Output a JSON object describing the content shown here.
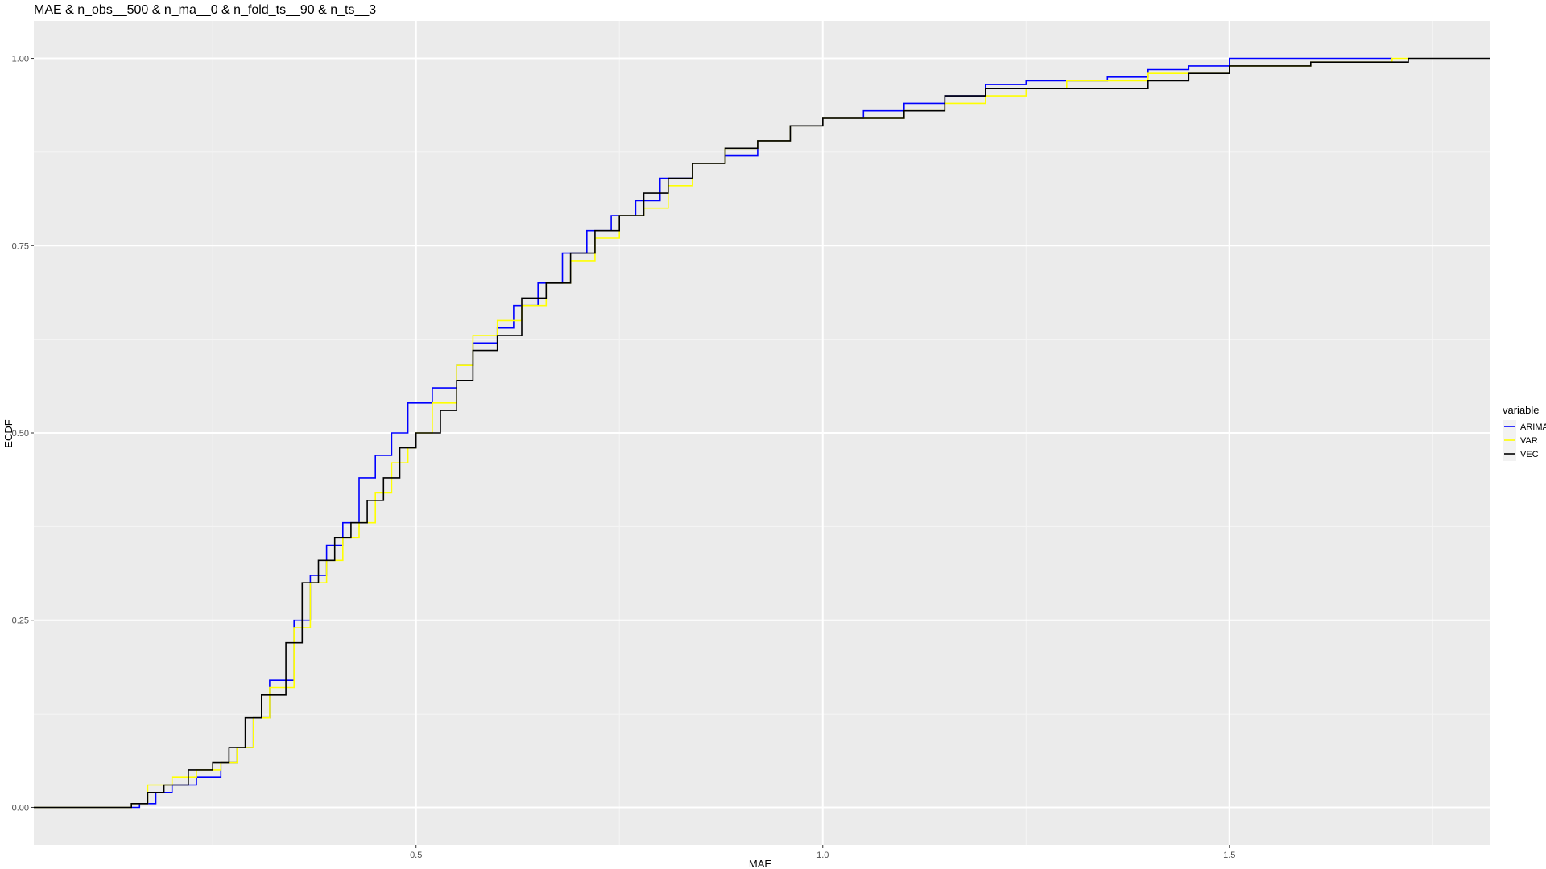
{
  "chart_data": {
    "type": "line",
    "title": "MAE & n_obs__500 & n_ma__0 & n_fold_ts__90 & n_ts__3",
    "xlabel": "MAE",
    "ylabel": "ECDF",
    "xlim": [
      0.03,
      1.82
    ],
    "ylim": [
      -0.05,
      1.05
    ],
    "x_ticks": [
      0.5,
      1.0,
      1.5
    ],
    "x_tick_labels": [
      "0.5",
      "1.0",
      "1.5"
    ],
    "y_ticks": [
      0.0,
      0.25,
      0.5,
      0.75,
      1.0
    ],
    "y_tick_labels": [
      "0.00",
      "0.25",
      "0.50",
      "0.75",
      "1.00"
    ],
    "grid": true,
    "legend": {
      "title": "variable",
      "placement": "right"
    },
    "series": [
      {
        "name": "ARIMA",
        "color": "#0000ff",
        "points": [
          [
            0.03,
            0.0
          ],
          [
            0.14,
            0.0
          ],
          [
            0.16,
            0.005
          ],
          [
            0.18,
            0.02
          ],
          [
            0.2,
            0.03
          ],
          [
            0.23,
            0.04
          ],
          [
            0.26,
            0.06
          ],
          [
            0.28,
            0.08
          ],
          [
            0.3,
            0.12
          ],
          [
            0.32,
            0.17
          ],
          [
            0.35,
            0.25
          ],
          [
            0.37,
            0.31
          ],
          [
            0.39,
            0.35
          ],
          [
            0.41,
            0.38
          ],
          [
            0.43,
            0.44
          ],
          [
            0.45,
            0.47
          ],
          [
            0.47,
            0.5
          ],
          [
            0.49,
            0.54
          ],
          [
            0.52,
            0.56
          ],
          [
            0.55,
            0.59
          ],
          [
            0.57,
            0.62
          ],
          [
            0.6,
            0.64
          ],
          [
            0.62,
            0.67
          ],
          [
            0.65,
            0.7
          ],
          [
            0.68,
            0.74
          ],
          [
            0.71,
            0.77
          ],
          [
            0.74,
            0.79
          ],
          [
            0.77,
            0.81
          ],
          [
            0.8,
            0.84
          ],
          [
            0.84,
            0.86
          ],
          [
            0.88,
            0.87
          ],
          [
            0.92,
            0.89
          ],
          [
            0.96,
            0.91
          ],
          [
            1.0,
            0.92
          ],
          [
            1.05,
            0.93
          ],
          [
            1.1,
            0.94
          ],
          [
            1.15,
            0.95
          ],
          [
            1.2,
            0.965
          ],
          [
            1.25,
            0.97
          ],
          [
            1.3,
            0.97
          ],
          [
            1.35,
            0.975
          ],
          [
            1.4,
            0.985
          ],
          [
            1.45,
            0.99
          ],
          [
            1.5,
            1.0
          ],
          [
            1.7,
            1.0
          ]
        ]
      },
      {
        "name": "VAR",
        "color": "#ffff00",
        "points": [
          [
            0.03,
            0.0
          ],
          [
            0.14,
            0.0
          ],
          [
            0.15,
            0.005
          ],
          [
            0.17,
            0.03
          ],
          [
            0.2,
            0.04
          ],
          [
            0.23,
            0.05
          ],
          [
            0.26,
            0.06
          ],
          [
            0.28,
            0.08
          ],
          [
            0.3,
            0.12
          ],
          [
            0.32,
            0.16
          ],
          [
            0.35,
            0.24
          ],
          [
            0.37,
            0.3
          ],
          [
            0.39,
            0.33
          ],
          [
            0.41,
            0.36
          ],
          [
            0.43,
            0.38
          ],
          [
            0.45,
            0.42
          ],
          [
            0.47,
            0.46
          ],
          [
            0.49,
            0.48
          ],
          [
            0.5,
            0.5
          ],
          [
            0.52,
            0.54
          ],
          [
            0.55,
            0.59
          ],
          [
            0.57,
            0.63
          ],
          [
            0.6,
            0.65
          ],
          [
            0.63,
            0.67
          ],
          [
            0.66,
            0.7
          ],
          [
            0.69,
            0.73
          ],
          [
            0.72,
            0.76
          ],
          [
            0.75,
            0.79
          ],
          [
            0.78,
            0.8
          ],
          [
            0.81,
            0.83
          ],
          [
            0.84,
            0.86
          ],
          [
            0.88,
            0.88
          ],
          [
            0.92,
            0.89
          ],
          [
            0.96,
            0.91
          ],
          [
            1.0,
            0.92
          ],
          [
            1.05,
            0.92
          ],
          [
            1.1,
            0.93
          ],
          [
            1.15,
            0.94
          ],
          [
            1.2,
            0.95
          ],
          [
            1.25,
            0.96
          ],
          [
            1.3,
            0.97
          ],
          [
            1.4,
            0.98
          ],
          [
            1.5,
            0.99
          ],
          [
            1.6,
            0.995
          ],
          [
            1.7,
            1.0
          ],
          [
            1.72,
            1.0
          ]
        ]
      },
      {
        "name": "VEC",
        "color": "#000000",
        "points": [
          [
            0.03,
            0.0
          ],
          [
            0.14,
            0.0
          ],
          [
            0.15,
            0.005
          ],
          [
            0.17,
            0.02
          ],
          [
            0.19,
            0.03
          ],
          [
            0.22,
            0.05
          ],
          [
            0.25,
            0.06
          ],
          [
            0.27,
            0.08
          ],
          [
            0.29,
            0.12
          ],
          [
            0.31,
            0.15
          ],
          [
            0.34,
            0.22
          ],
          [
            0.36,
            0.3
          ],
          [
            0.38,
            0.33
          ],
          [
            0.4,
            0.36
          ],
          [
            0.42,
            0.38
          ],
          [
            0.44,
            0.41
          ],
          [
            0.46,
            0.44
          ],
          [
            0.48,
            0.48
          ],
          [
            0.5,
            0.5
          ],
          [
            0.53,
            0.53
          ],
          [
            0.55,
            0.57
          ],
          [
            0.57,
            0.61
          ],
          [
            0.6,
            0.63
          ],
          [
            0.63,
            0.68
          ],
          [
            0.66,
            0.7
          ],
          [
            0.69,
            0.74
          ],
          [
            0.72,
            0.77
          ],
          [
            0.75,
            0.79
          ],
          [
            0.78,
            0.82
          ],
          [
            0.81,
            0.84
          ],
          [
            0.84,
            0.86
          ],
          [
            0.88,
            0.88
          ],
          [
            0.92,
            0.89
          ],
          [
            0.96,
            0.91
          ],
          [
            1.0,
            0.92
          ],
          [
            1.05,
            0.92
          ],
          [
            1.1,
            0.93
          ],
          [
            1.15,
            0.95
          ],
          [
            1.2,
            0.96
          ],
          [
            1.25,
            0.96
          ],
          [
            1.3,
            0.96
          ],
          [
            1.4,
            0.97
          ],
          [
            1.45,
            0.98
          ],
          [
            1.5,
            0.99
          ],
          [
            1.6,
            0.995
          ],
          [
            1.72,
            1.0
          ],
          [
            1.82,
            1.0
          ]
        ]
      }
    ]
  }
}
